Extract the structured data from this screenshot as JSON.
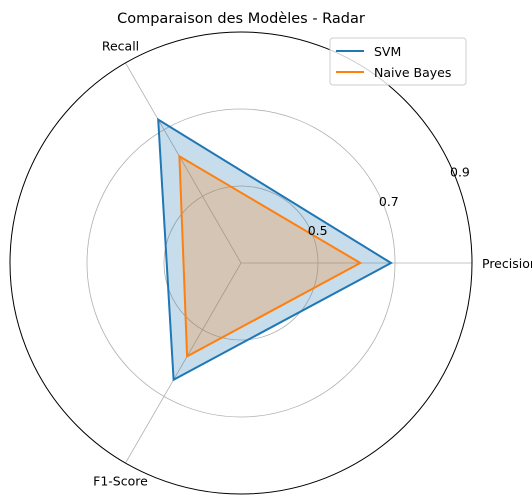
{
  "chart_data": {
    "type": "radar",
    "title": "Comparaison des Modèles - Radar",
    "axes": [
      "Precision",
      "Recall",
      "F1-Score"
    ],
    "radial_ticks": [
      0.5,
      0.7,
      0.9
    ],
    "rlim": [
      0.3,
      0.9
    ],
    "grid": true,
    "legend_placement": "top-right",
    "series": [
      {
        "name": "SVM",
        "values": [
          0.69,
          0.73,
          0.65
        ],
        "color": "#1f77b4",
        "fill_color": "#1f77b4"
      },
      {
        "name": "Naive Bayes",
        "values": [
          0.61,
          0.62,
          0.58
        ],
        "color": "#ff7f0e",
        "fill_color": "#ff7f0e"
      }
    ]
  }
}
